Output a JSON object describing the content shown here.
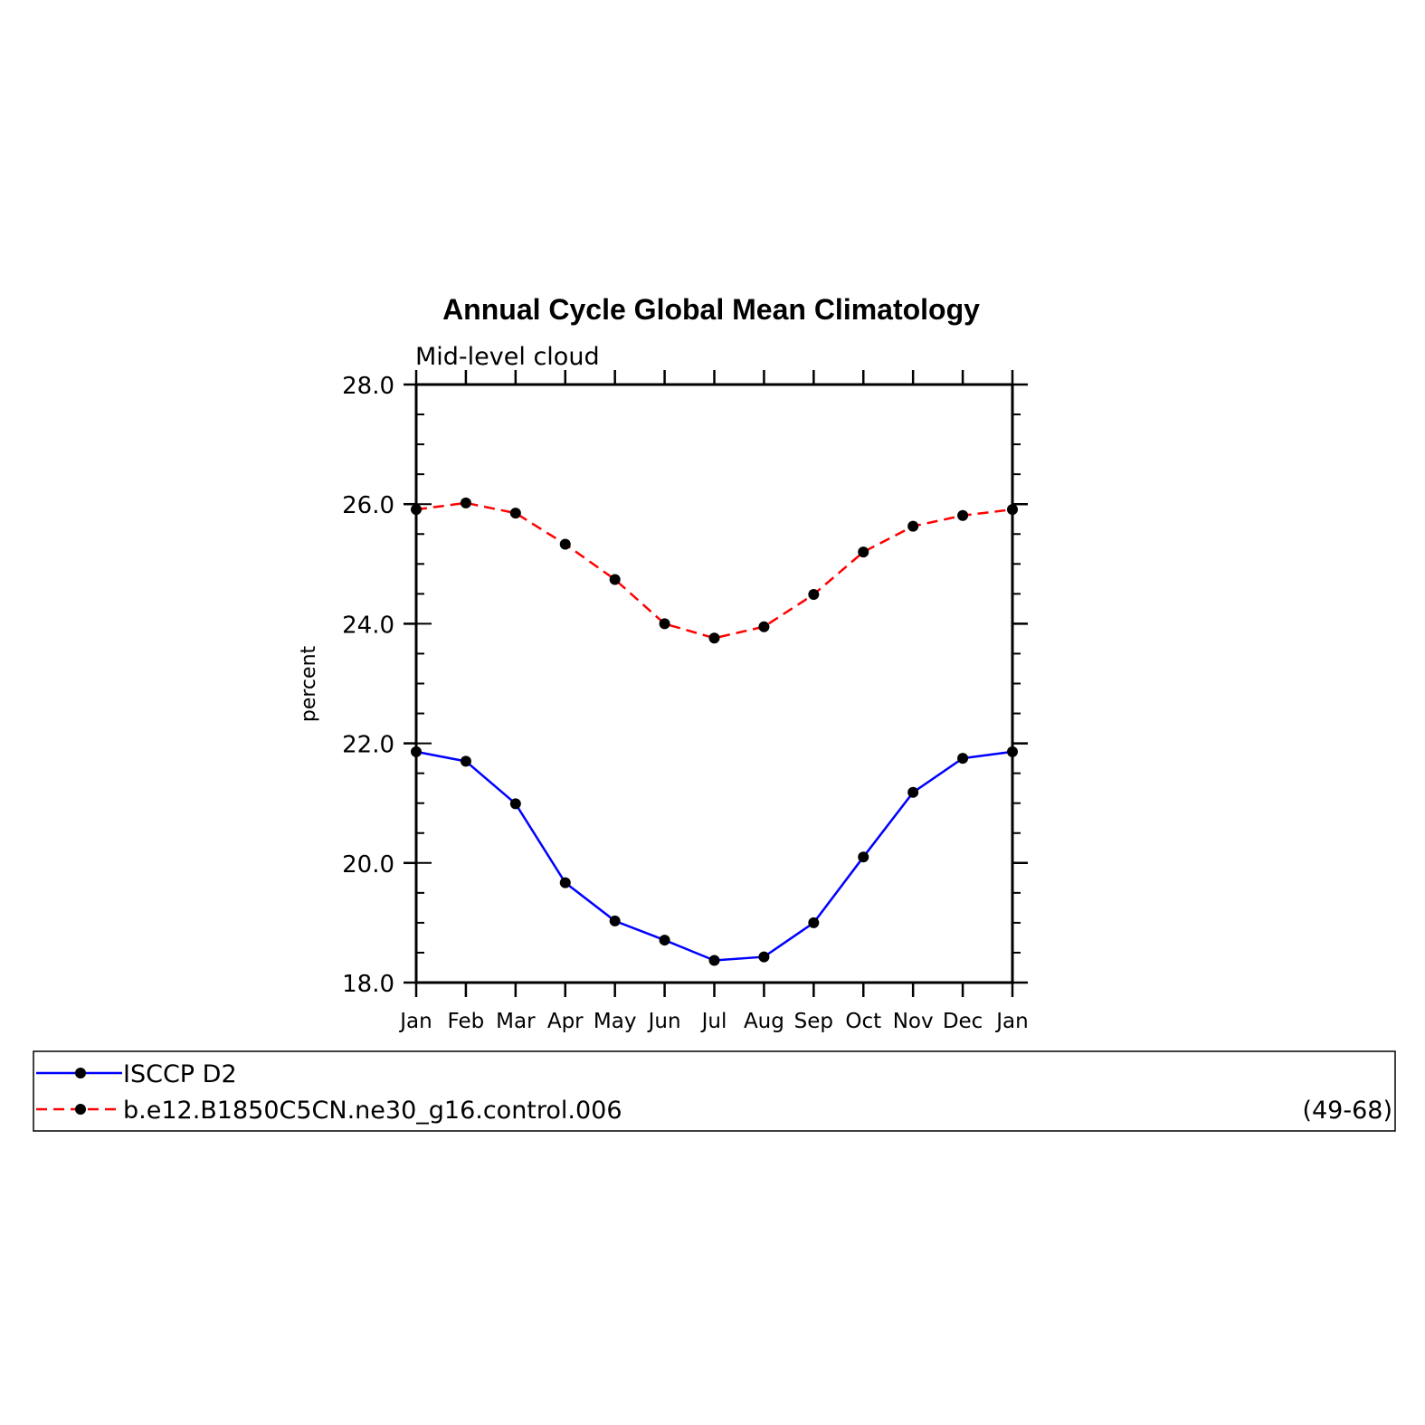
{
  "chart_data": {
    "type": "line",
    "title": "Annual Cycle Global Mean Climatology",
    "subtitle": "Mid-level cloud",
    "xlabel": "",
    "ylabel": "percent",
    "categories": [
      "Jan",
      "Feb",
      "Mar",
      "Apr",
      "May",
      "Jun",
      "Jul",
      "Aug",
      "Sep",
      "Oct",
      "Nov",
      "Dec",
      "Jan"
    ],
    "ylim": [
      18.0,
      28.0
    ],
    "yticks": [
      "18.0",
      "20.0",
      "22.0",
      "24.0",
      "26.0",
      "28.0"
    ],
    "grid": false,
    "legend_position": "bottom",
    "series": [
      {
        "name": "ISCCP D2",
        "color": "#0000ff",
        "dash": "solid",
        "values": [
          21.86,
          21.7,
          20.99,
          19.67,
          19.03,
          18.71,
          18.37,
          18.43,
          19.0,
          20.1,
          21.18,
          21.75,
          21.86
        ]
      },
      {
        "name": "b.e12.B1850C5CN.ne30_g16.control.006",
        "annotation": "(49-68)",
        "color": "#ff0000",
        "dash": "dashed",
        "values": [
          25.91,
          26.02,
          25.85,
          25.33,
          24.74,
          24.0,
          23.76,
          23.95,
          24.49,
          25.2,
          25.63,
          25.81,
          25.91
        ]
      }
    ]
  }
}
